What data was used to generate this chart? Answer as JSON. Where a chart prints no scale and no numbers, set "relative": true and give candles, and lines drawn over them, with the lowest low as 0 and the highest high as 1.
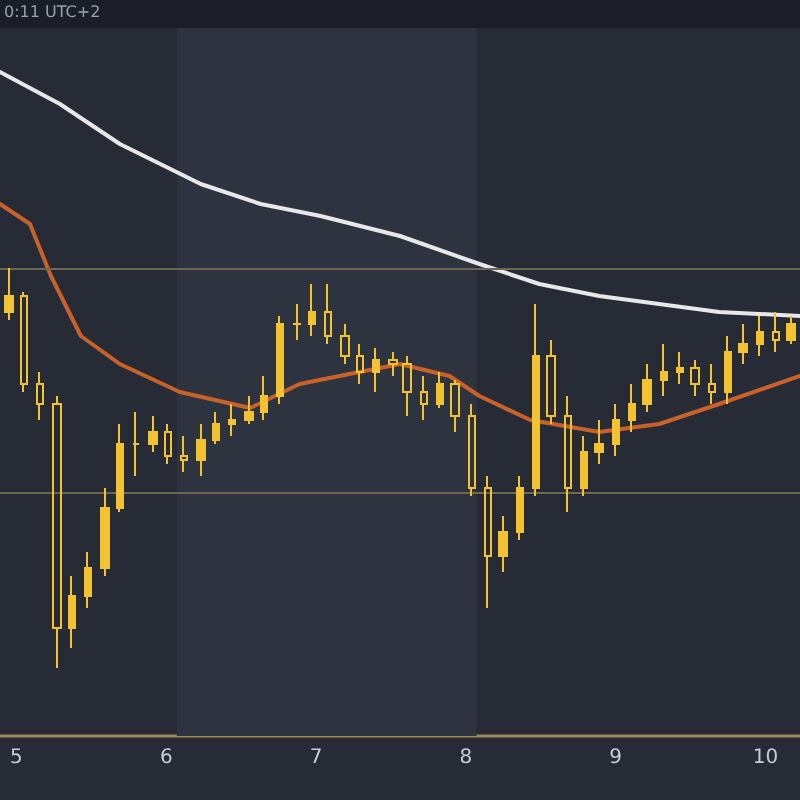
{
  "chart_data": {
    "type": "candlestick",
    "relative": true,
    "annotations": [
      "0:11 UTC+2"
    ],
    "xlim": [
      4.89,
      10.23
    ],
    "xticks": [
      5,
      6,
      7,
      8,
      9,
      10
    ],
    "grid": false,
    "series": [
      {
        "type": "line",
        "color": "#e8e8ea",
        "x": [
          4.89,
          5.29,
          5.69,
          6.23,
          6.63,
          7.03,
          7.56,
          8.09,
          8.49,
          8.89,
          9.29,
          9.69,
          10.23
        ],
        "values": [
          1.49,
          1.41,
          1.31,
          1.21,
          1.16,
          1.13,
          1.08,
          1.01,
          0.96,
          0.93,
          0.91,
          0.89,
          0.88
        ]
      },
      {
        "type": "line",
        "color": "#c8622a",
        "x": [
          4.89,
          5.09,
          5.23,
          5.43,
          5.69,
          6.09,
          6.56,
          6.89,
          7.29,
          7.56,
          7.89,
          8.09,
          8.43,
          8.89,
          9.29,
          9.69,
          10.23
        ],
        "values": [
          1.16,
          1.11,
          0.98,
          0.83,
          0.76,
          0.69,
          0.65,
          0.71,
          0.74,
          0.76,
          0.73,
          0.68,
          0.62,
          0.59,
          0.61,
          0.66,
          0.73
        ]
      },
      {
        "color": "#f2c230",
        "x": [
          4.95,
          5.05,
          5.16,
          5.27,
          5.37,
          5.48,
          5.59,
          5.69,
          5.8,
          5.91,
          6.01,
          6.12,
          6.23,
          6.33,
          6.44,
          6.55,
          6.65,
          6.76,
          6.87,
          6.97,
          7.08,
          7.19,
          7.29,
          7.4,
          7.51,
          7.61,
          7.72,
          7.83,
          7.93,
          8.04,
          8.15,
          8.25,
          8.36,
          8.47,
          8.57,
          8.68,
          8.79,
          8.89,
          9.0,
          9.11,
          9.21,
          9.32,
          9.43,
          9.53,
          9.64,
          9.75,
          9.85,
          9.96,
          10.07,
          10.17
        ],
        "ohlc": [
          [
            0.89,
            1.0,
            0.87,
            0.93
          ],
          [
            0.93,
            0.94,
            0.69,
            0.71
          ],
          [
            0.71,
            0.74,
            0.62,
            0.66
          ],
          [
            0.66,
            0.68,
            0,
            0.1
          ],
          [
            0.1,
            0.23,
            0.05,
            0.18
          ],
          [
            0.18,
            0.29,
            0.15,
            0.25
          ],
          [
            0.25,
            0.45,
            0.23,
            0.4
          ],
          [
            0.4,
            0.61,
            0.39,
            0.56
          ],
          [
            0.56,
            0.64,
            0.48,
            0.56
          ],
          [
            0.56,
            0.63,
            0.54,
            0.59
          ],
          [
            0.59,
            0.61,
            0.51,
            0.53
          ],
          [
            0.53,
            0.58,
            0.49,
            0.52
          ],
          [
            0.52,
            0.61,
            0.48,
            0.57
          ],
          [
            0.57,
            0.64,
            0.56,
            0.61
          ],
          [
            0.61,
            0.66,
            0.58,
            0.62
          ],
          [
            0.62,
            0.68,
            0.61,
            0.64
          ],
          [
            0.64,
            0.73,
            0.62,
            0.68
          ],
          [
            0.68,
            0.88,
            0.66,
            0.86
          ],
          [
            0.86,
            0.91,
            0.82,
            0.86
          ],
          [
            0.86,
            0.96,
            0.83,
            0.89
          ],
          [
            0.89,
            0.96,
            0.81,
            0.83
          ],
          [
            0.83,
            0.86,
            0.76,
            0.78
          ],
          [
            0.78,
            0.81,
            0.71,
            0.74
          ],
          [
            0.74,
            0.8,
            0.69,
            0.77
          ],
          [
            0.77,
            0.79,
            0.73,
            0.76
          ],
          [
            0.76,
            0.78,
            0.63,
            0.69
          ],
          [
            0.69,
            0.73,
            0.62,
            0.66
          ],
          [
            0.66,
            0.74,
            0.65,
            0.71
          ],
          [
            0.71,
            0.72,
            0.59,
            0.63
          ],
          [
            0.63,
            0.66,
            0.43,
            0.45
          ],
          [
            0.45,
            0.48,
            0.15,
            0.28
          ],
          [
            0.28,
            0.38,
            0.24,
            0.34
          ],
          [
            0.34,
            0.48,
            0.32,
            0.45
          ],
          [
            0.45,
            0.91,
            0.43,
            0.78
          ],
          [
            0.78,
            0.82,
            0.61,
            0.63
          ],
          [
            0.63,
            0.68,
            0.39,
            0.45
          ],
          [
            0.45,
            0.58,
            0.43,
            0.54
          ],
          [
            0.54,
            0.62,
            0.51,
            0.56
          ],
          [
            0.56,
            0.66,
            0.53,
            0.62
          ],
          [
            0.62,
            0.71,
            0.59,
            0.66
          ],
          [
            0.66,
            0.76,
            0.64,
            0.72
          ],
          [
            0.72,
            0.81,
            0.68,
            0.74
          ],
          [
            0.74,
            0.79,
            0.71,
            0.75
          ],
          [
            0.75,
            0.77,
            0.68,
            0.71
          ],
          [
            0.71,
            0.76,
            0.66,
            0.69
          ],
          [
            0.69,
            0.83,
            0.66,
            0.79
          ],
          [
            0.79,
            0.86,
            0.76,
            0.81
          ],
          [
            0.81,
            0.88,
            0.78,
            0.84
          ],
          [
            0.84,
            0.89,
            0.79,
            0.82
          ],
          [
            0.82,
            0.88,
            0.81,
            0.86
          ]
        ]
      }
    ],
    "ref_lines": [
      {
        "axis": "y",
        "value": 1.0,
        "color": "#6e6650"
      },
      {
        "axis": "y",
        "value": 0.44,
        "color": "#6e6650"
      }
    ],
    "bands": [
      {
        "axis": "x",
        "from": 6.07,
        "to": 8.07,
        "color": "#2e3340"
      }
    ]
  }
}
